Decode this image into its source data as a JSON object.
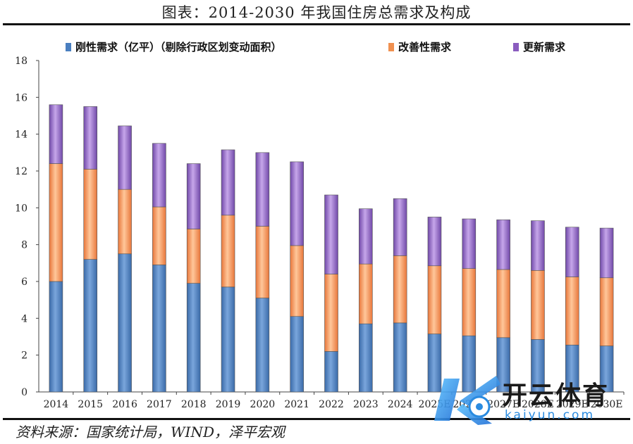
{
  "header": {
    "title": "图表：2014-2030 年我国住房总需求及构成"
  },
  "footer": {
    "source": "资料来源：国家统计局，WIND，泽平宏观"
  },
  "watermark": {
    "logo_text": "开云体育",
    "domain": "kaiyun.com"
  },
  "colors": {
    "rigid": "#4a7fc0",
    "improve": "#f09050",
    "renewal": "#8a5cbf"
  },
  "chart_data": {
    "type": "bar",
    "stacked": true,
    "title": "图表：2014-2030 年我国住房总需求及构成",
    "categories": [
      "2014",
      "2015",
      "2016",
      "2017",
      "2018",
      "2019",
      "2020",
      "2021",
      "2022",
      "2023",
      "2024",
      "2025E",
      "2026E",
      "2027E",
      "2028E",
      "2029E",
      "2030E"
    ],
    "series": [
      {
        "name": "刚性需求（亿平）（剔除行政区划变动面积）",
        "values": [
          6.0,
          7.2,
          7.5,
          6.9,
          5.9,
          5.7,
          5.1,
          4.1,
          2.2,
          3.7,
          3.75,
          3.15,
          3.05,
          2.95,
          2.85,
          2.55,
          2.5
        ]
      },
      {
        "name": "改善性需求",
        "values": [
          6.4,
          4.9,
          3.5,
          3.15,
          2.95,
          3.9,
          3.9,
          3.85,
          4.2,
          3.25,
          3.65,
          3.7,
          3.65,
          3.7,
          3.75,
          3.7,
          3.7
        ]
      },
      {
        "name": "更新需求",
        "values": [
          3.2,
          3.4,
          3.45,
          3.45,
          3.55,
          3.55,
          4.0,
          4.55,
          4.3,
          3.0,
          3.1,
          2.65,
          2.7,
          2.7,
          2.7,
          2.7,
          2.7
        ]
      }
    ],
    "ylim": [
      0,
      18
    ],
    "yticks": [
      0,
      2,
      4,
      6,
      8,
      10,
      12,
      14,
      16,
      18
    ],
    "xlabel": "",
    "ylabel": "",
    "grid": false,
    "legend_position": "top"
  }
}
